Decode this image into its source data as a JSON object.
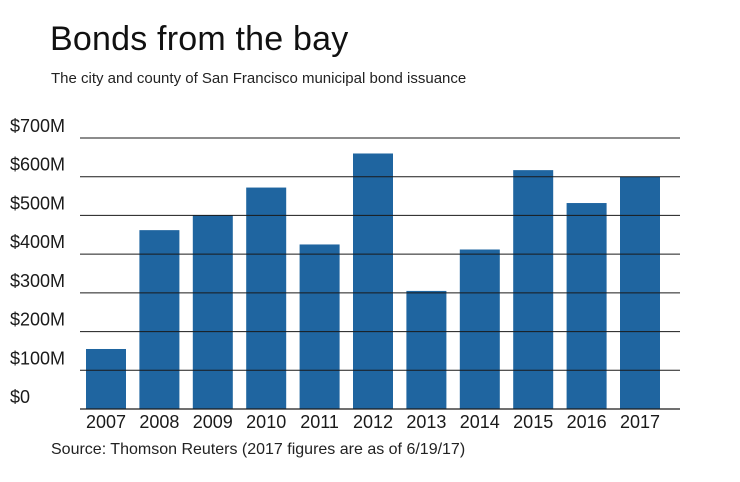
{
  "title": "Bonds from the bay",
  "subtitle": "The city and county of San Francisco municipal bond issuance",
  "source": "Source: Thomson Reuters (2017 figures are as of 6/19/17)",
  "colors": {
    "bar": "#1f65a0",
    "grid": "#1a1a1a",
    "text": "#1a1a1a"
  },
  "chart_data": {
    "type": "bar",
    "title": "Bonds from the bay",
    "subtitle": "The city and county of San Francisco municipal bond issuance",
    "xlabel": "",
    "ylabel": "",
    "categories": [
      "2007",
      "2008",
      "2009",
      "2010",
      "2011",
      "2012",
      "2013",
      "2014",
      "2015",
      "2016",
      "2017"
    ],
    "values": [
      155,
      462,
      500,
      572,
      425,
      660,
      305,
      412,
      617,
      532,
      600
    ],
    "unit": "$M",
    "ylim": [
      0,
      700
    ],
    "yticks": [
      0,
      100,
      200,
      300,
      400,
      500,
      600,
      700
    ],
    "ytick_labels": [
      "$0",
      "$100M",
      "$200M",
      "$300M",
      "$400M",
      "$500M",
      "$600M",
      "$700M"
    ],
    "grid": true,
    "legend": "none"
  }
}
